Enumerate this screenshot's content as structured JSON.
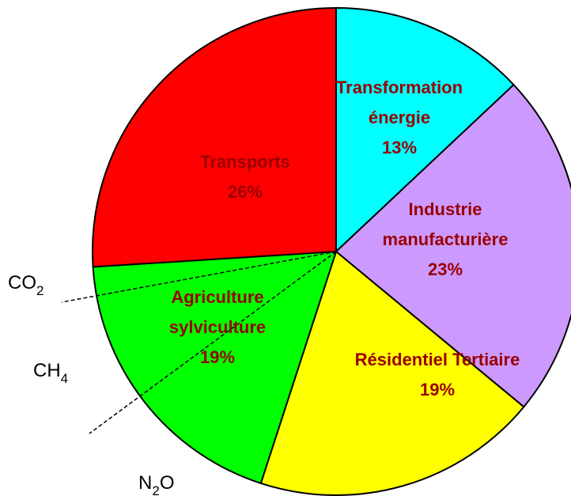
{
  "chart_data": {
    "type": "pie",
    "categories": [
      [
        "Transformation",
        "énergie"
      ],
      [
        "Industrie",
        "manufacturière"
      ],
      [
        "Résidentiel  Tertiaire"
      ],
      [
        "Agriculture",
        "sylviculture"
      ],
      [
        "Transports"
      ]
    ],
    "values": [
      13,
      23,
      19,
      19,
      26
    ],
    "value_labels": [
      "13%",
      "23%",
      "19%",
      "19%",
      "26%"
    ],
    "colors": [
      "#00ffff",
      "#cc99ff",
      "#ffff00",
      "#00ff00",
      "#ff0000"
    ],
    "annotations": [
      {
        "text": "CO",
        "sub": "2"
      },
      {
        "text": "CH",
        "sub": "4"
      },
      {
        "text": "N",
        "sub": "2",
        "after": "O"
      }
    ]
  }
}
